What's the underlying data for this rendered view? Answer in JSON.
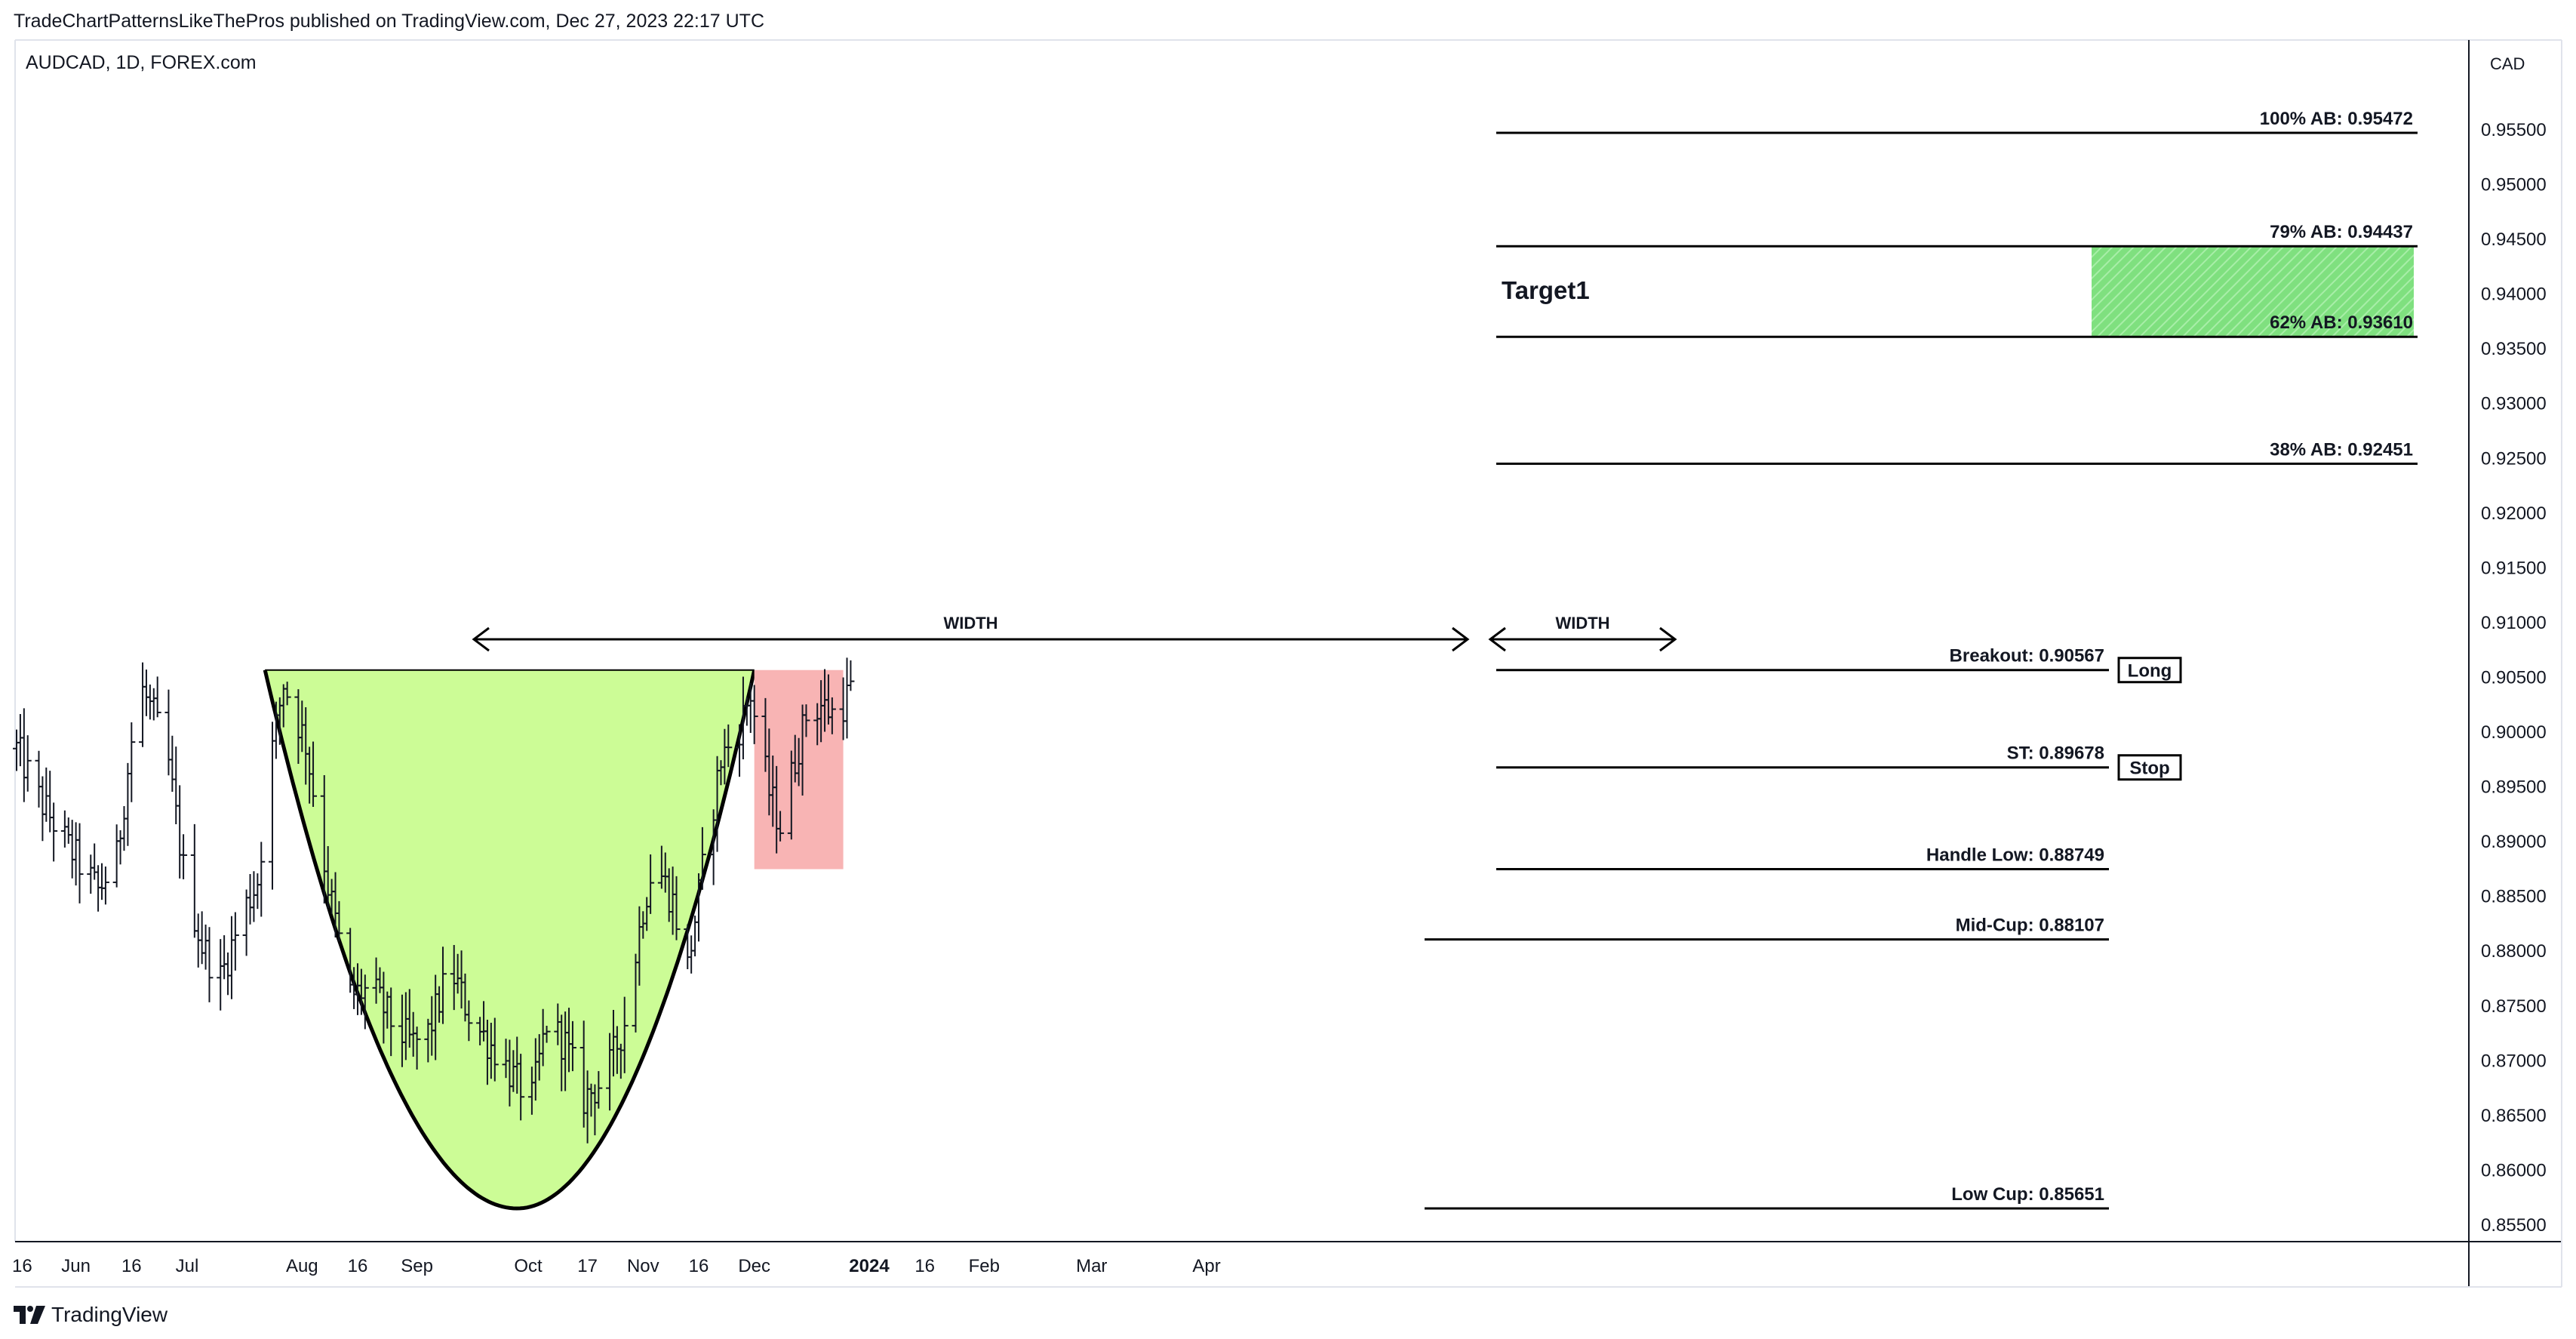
{
  "header": {
    "published": "TradeChartPatternsLikeThePros published on TradingView.com, Dec 27, 2023 22:17 UTC"
  },
  "symbol": {
    "label": "AUDCAD, 1D, FOREX.com"
  },
  "footer": {
    "brand": "TradingView"
  },
  "chart_data": {
    "type": "ohlc",
    "currency": "CAD",
    "y_axis_ticks": [
      "0.95500",
      "0.95000",
      "0.94500",
      "0.94000",
      "0.93500",
      "0.93000",
      "0.92500",
      "0.92000",
      "0.91500",
      "0.91000",
      "0.90500",
      "0.90000",
      "0.89500",
      "0.89000",
      "0.88500",
      "0.88000",
      "0.87500",
      "0.87000",
      "0.86500",
      "0.86000",
      "0.85500"
    ],
    "y_tick_values": [
      0.955,
      0.95,
      0.945,
      0.94,
      0.935,
      0.93,
      0.925,
      0.92,
      0.915,
      0.91,
      0.905,
      0.9,
      0.895,
      0.89,
      0.885,
      0.88,
      0.875,
      0.87,
      0.865,
      0.86,
      0.855
    ],
    "x_axis_labels": [
      {
        "label": "16",
        "date": "2023-05-16"
      },
      {
        "label": "Jun",
        "date": "2023-06-01"
      },
      {
        "label": "16",
        "date": "2023-06-16"
      },
      {
        "label": "Jul",
        "date": "2023-07-01"
      },
      {
        "label": "Aug",
        "date": "2023-08-01"
      },
      {
        "label": "16",
        "date": "2023-08-16"
      },
      {
        "label": "Sep",
        "date": "2023-09-01"
      },
      {
        "label": "Oct",
        "date": "2023-10-01"
      },
      {
        "label": "17",
        "date": "2023-10-17"
      },
      {
        "label": "Nov",
        "date": "2023-11-01"
      },
      {
        "label": "16",
        "date": "2023-11-16"
      },
      {
        "label": "Dec",
        "date": "2023-12-01"
      },
      {
        "label": "2024",
        "date": "2024-01-01"
      },
      {
        "label": "16",
        "date": "2024-01-16"
      },
      {
        "label": "Feb",
        "date": "2024-02-01"
      },
      {
        "label": "Mar",
        "date": "2024-03-01"
      },
      {
        "label": "Apr",
        "date": "2024-04-01"
      }
    ],
    "price_path": [
      [
        "2023-05-16",
        0.8985
      ],
      [
        "2023-05-22",
        0.894
      ],
      [
        "2023-05-30",
        0.8895
      ],
      [
        "2023-06-07",
        0.8855
      ],
      [
        "2023-06-12",
        0.8885
      ],
      [
        "2023-06-18",
        0.9045
      ],
      [
        "2023-06-22",
        0.9015
      ],
      [
        "2023-06-26",
        0.897
      ],
      [
        "2023-06-30",
        0.8875
      ],
      [
        "2023-07-05",
        0.8805
      ],
      [
        "2023-07-10",
        0.8775
      ],
      [
        "2023-07-16",
        0.8835
      ],
      [
        "2023-07-20",
        0.8865
      ],
      [
        "2023-07-24",
        0.8985
      ],
      [
        "2023-07-27",
        0.9045
      ],
      [
        "2023-08-02",
        0.899
      ],
      [
        "2023-08-08",
        0.886
      ],
      [
        "2023-08-14",
        0.876
      ],
      [
        "2023-08-20",
        0.8765
      ],
      [
        "2023-08-26",
        0.873
      ],
      [
        "2023-08-31",
        0.8715
      ],
      [
        "2023-09-04",
        0.8725
      ],
      [
        "2023-09-10",
        0.8785
      ],
      [
        "2023-09-16",
        0.8735
      ],
      [
        "2023-09-22",
        0.871
      ],
      [
        "2023-09-28",
        0.868
      ],
      [
        "2023-10-02",
        0.8665
      ],
      [
        "2023-10-06",
        0.8735
      ],
      [
        "2023-10-11",
        0.8715
      ],
      [
        "2023-10-16",
        0.8665
      ],
      [
        "2023-10-22",
        0.8685
      ],
      [
        "2023-10-27",
        0.8735
      ],
      [
        "2023-11-01",
        0.884
      ],
      [
        "2023-11-04",
        0.8885
      ],
      [
        "2023-11-09",
        0.8845
      ],
      [
        "2023-11-13",
        0.8785
      ],
      [
        "2023-11-18",
        0.8895
      ],
      [
        "2023-11-22",
        0.8975
      ],
      [
        "2023-11-27",
        0.9005
      ],
      [
        "2023-11-30",
        0.9035
      ],
      [
        "2023-12-02",
        0.8995
      ],
      [
        "2023-12-05",
        0.8945
      ],
      [
        "2023-12-08",
        0.8915
      ],
      [
        "2023-12-12",
        0.8975
      ],
      [
        "2023-12-15",
        0.9015
      ],
      [
        "2023-12-19",
        0.9025
      ],
      [
        "2023-12-23",
        0.9015
      ],
      [
        "2023-12-27",
        0.9038
      ]
    ],
    "annotations": {
      "cup": {
        "start": "2023-07-22",
        "end": "2023-12-01",
        "rim": 0.90567,
        "bottom": 0.85651,
        "bottom_date": "2023-09-28",
        "width_label": "WIDTH"
      },
      "handle": {
        "start": "2023-12-01",
        "end": "2023-12-25",
        "top": 0.90567,
        "bottom": 0.88749,
        "width_label": "WIDTH"
      },
      "levels": [
        {
          "label": "100% AB: 0.95472",
          "value": 0.95472
        },
        {
          "label": "79% AB: 0.94437",
          "value": 0.94437
        },
        {
          "label": "62% AB: 0.93610",
          "value": 0.9361
        },
        {
          "label": "38% AB: 0.92451",
          "value": 0.92451
        },
        {
          "label": "Breakout: 0.90567",
          "value": 0.90567,
          "badge": "Long"
        },
        {
          "label": "ST: 0.89678",
          "value": 0.89678,
          "badge": "Stop"
        },
        {
          "label": "Handle Low: 0.88749",
          "value": 0.88749
        },
        {
          "label": "Mid-Cup: 0.88107",
          "value": 0.88107
        },
        {
          "label": "Low Cup: 0.85651",
          "value": 0.85651
        }
      ],
      "target_zone": {
        "label": "Target1",
        "low": 0.9361,
        "high": 0.94437
      }
    },
    "colors": {
      "cup_fill": "#ccfc96",
      "handle_fill": "#f8b4b4",
      "target_fill": "#6fdc6f",
      "bars": "#131722",
      "grid_border": "#e0e3eb"
    }
  }
}
